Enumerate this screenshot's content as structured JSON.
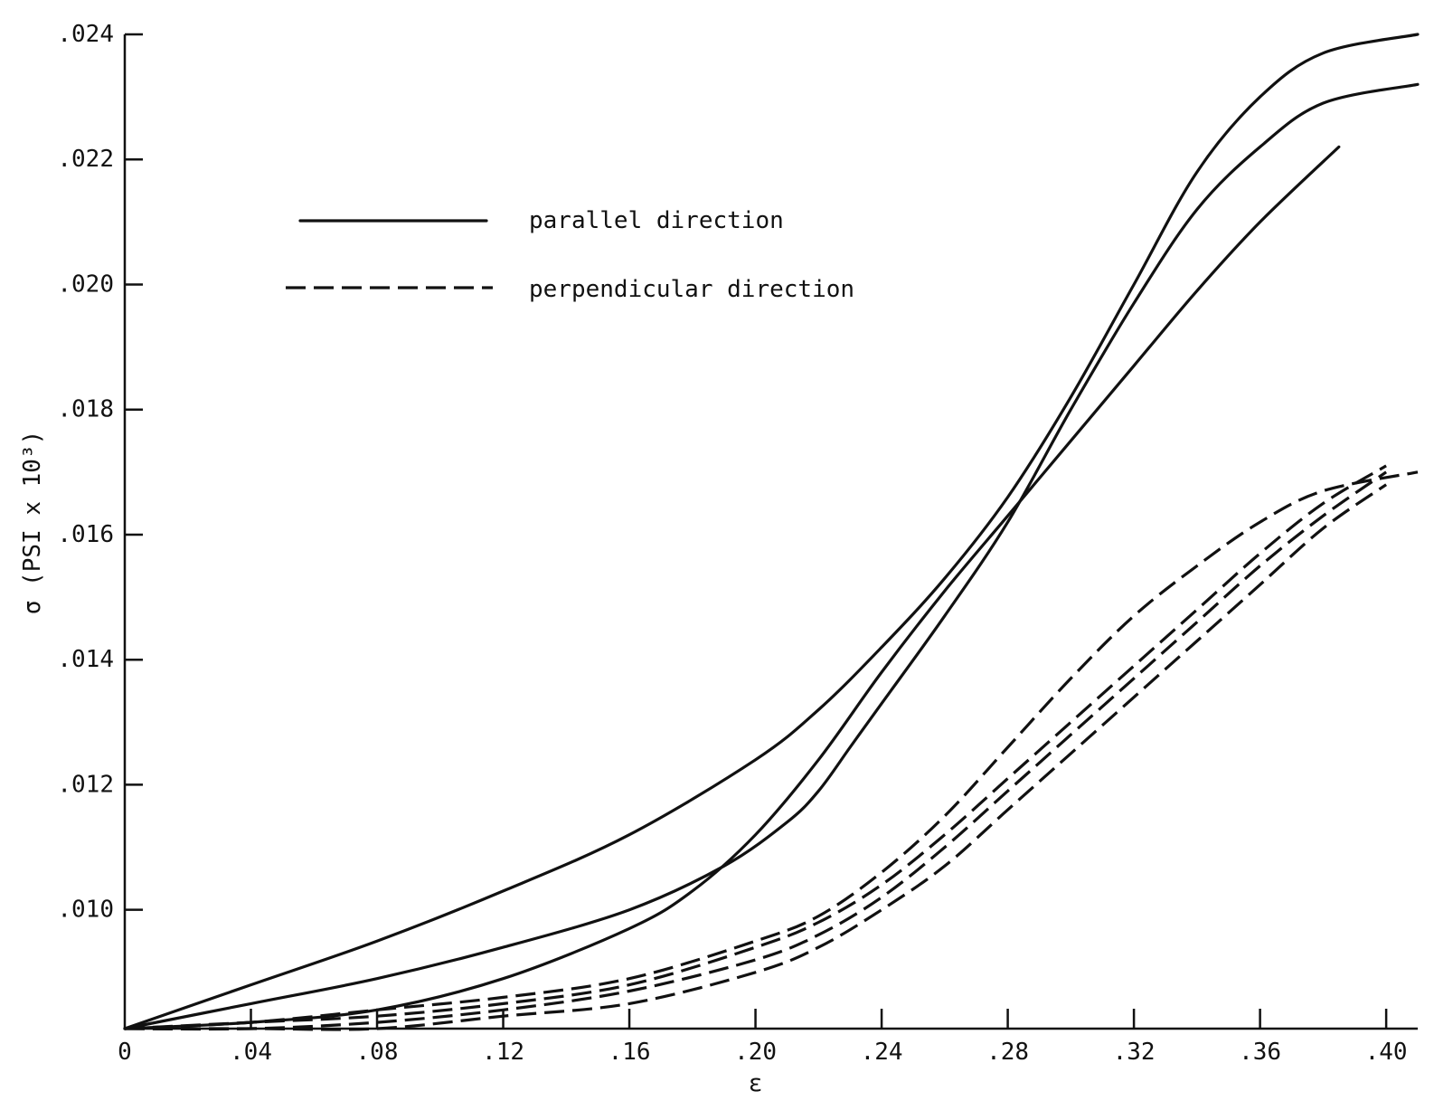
{
  "chart_data": {
    "type": "line",
    "xlabel": "ε",
    "ylabel": "σ (PSI x 10³)",
    "xlim": [
      0,
      0.41
    ],
    "ylim": [
      0.0081,
      0.024
    ],
    "x_ticks": [
      "0",
      ".04",
      ".08",
      ".12",
      ".16",
      ".20",
      ".24",
      ".28",
      ".32",
      ".36",
      ".40"
    ],
    "y_ticks": [
      ".010",
      ".012",
      ".014",
      ".016",
      ".018",
      ".020",
      ".022",
      ".024"
    ],
    "x_tick_values": [
      0,
      0.04,
      0.08,
      0.12,
      0.16,
      0.2,
      0.24,
      0.28,
      0.32,
      0.36,
      0.4
    ],
    "y_tick_values": [
      0.01,
      0.012,
      0.014,
      0.016,
      0.018,
      0.02,
      0.022,
      0.024
    ],
    "grid": false,
    "legend": {
      "placement": "top-left",
      "entries": [
        {
          "label": "parallel direction",
          "style": "solid"
        },
        {
          "label": "perpendicular direction",
          "style": "dashed"
        }
      ]
    },
    "series": [
      {
        "style": "solid",
        "points": [
          [
            0,
            0.0081
          ],
          [
            0.04,
            0.0088
          ],
          [
            0.08,
            0.0095
          ],
          [
            0.12,
            0.0103
          ],
          [
            0.16,
            0.0112
          ],
          [
            0.2,
            0.0124
          ],
          [
            0.22,
            0.0132
          ],
          [
            0.24,
            0.0142
          ],
          [
            0.26,
            0.0153
          ],
          [
            0.28,
            0.0166
          ],
          [
            0.3,
            0.0182
          ],
          [
            0.32,
            0.02
          ],
          [
            0.34,
            0.0218
          ],
          [
            0.36,
            0.023
          ],
          [
            0.38,
            0.0237
          ],
          [
            0.41,
            0.024
          ]
        ]
      },
      {
        "style": "solid",
        "points": [
          [
            0,
            0.0081
          ],
          [
            0.04,
            0.0085
          ],
          [
            0.08,
            0.0089
          ],
          [
            0.12,
            0.0094
          ],
          [
            0.16,
            0.01
          ],
          [
            0.19,
            0.0107
          ],
          [
            0.21,
            0.0114
          ],
          [
            0.22,
            0.0119
          ],
          [
            0.23,
            0.0126
          ],
          [
            0.24,
            0.0133
          ],
          [
            0.26,
            0.0147
          ],
          [
            0.28,
            0.0162
          ],
          [
            0.3,
            0.018
          ],
          [
            0.32,
            0.0197
          ],
          [
            0.34,
            0.0212
          ],
          [
            0.36,
            0.0222
          ],
          [
            0.38,
            0.0229
          ],
          [
            0.41,
            0.0232
          ]
        ]
      },
      {
        "style": "solid",
        "points": [
          [
            0,
            0.0081
          ],
          [
            0.04,
            0.0082
          ],
          [
            0.08,
            0.0084
          ],
          [
            0.12,
            0.0089
          ],
          [
            0.16,
            0.0097
          ],
          [
            0.18,
            0.0103
          ],
          [
            0.2,
            0.0112
          ],
          [
            0.22,
            0.0124
          ],
          [
            0.24,
            0.0138
          ],
          [
            0.26,
            0.0151
          ],
          [
            0.28,
            0.0163
          ],
          [
            0.3,
            0.0175
          ],
          [
            0.32,
            0.0187
          ],
          [
            0.34,
            0.0199
          ],
          [
            0.36,
            0.021
          ],
          [
            0.385,
            0.0222
          ]
        ]
      },
      {
        "style": "dashed",
        "points": [
          [
            0,
            0.0081
          ],
          [
            0.04,
            0.0082
          ],
          [
            0.08,
            0.0084
          ],
          [
            0.12,
            0.0086
          ],
          [
            0.16,
            0.0089
          ],
          [
            0.2,
            0.0095
          ],
          [
            0.22,
            0.0099
          ],
          [
            0.24,
            0.0106
          ],
          [
            0.26,
            0.0115
          ],
          [
            0.28,
            0.0126
          ],
          [
            0.3,
            0.0137
          ],
          [
            0.32,
            0.0147
          ],
          [
            0.34,
            0.0155
          ],
          [
            0.36,
            0.0162
          ],
          [
            0.38,
            0.0167
          ],
          [
            0.41,
            0.017
          ]
        ]
      },
      {
        "style": "dashed",
        "points": [
          [
            0,
            0.0081
          ],
          [
            0.04,
            0.0082
          ],
          [
            0.08,
            0.0083
          ],
          [
            0.12,
            0.0085
          ],
          [
            0.16,
            0.0088
          ],
          [
            0.2,
            0.0094
          ],
          [
            0.22,
            0.0098
          ],
          [
            0.24,
            0.0104
          ],
          [
            0.26,
            0.0112
          ],
          [
            0.28,
            0.0121
          ],
          [
            0.3,
            0.013
          ],
          [
            0.32,
            0.0139
          ],
          [
            0.34,
            0.0148
          ],
          [
            0.36,
            0.0157
          ],
          [
            0.38,
            0.0165
          ],
          [
            0.4,
            0.0171
          ]
        ]
      },
      {
        "style": "dashed",
        "points": [
          [
            0,
            0.0081
          ],
          [
            0.04,
            0.0081
          ],
          [
            0.08,
            0.0082
          ],
          [
            0.12,
            0.0084
          ],
          [
            0.16,
            0.0087
          ],
          [
            0.2,
            0.0092
          ],
          [
            0.22,
            0.0096
          ],
          [
            0.24,
            0.0102
          ],
          [
            0.26,
            0.011
          ],
          [
            0.28,
            0.0119
          ],
          [
            0.3,
            0.0128
          ],
          [
            0.32,
            0.0137
          ],
          [
            0.34,
            0.0146
          ],
          [
            0.36,
            0.0155
          ],
          [
            0.38,
            0.0163
          ],
          [
            0.4,
            0.017
          ]
        ]
      },
      {
        "style": "dashed",
        "points": [
          [
            0,
            0.0081
          ],
          [
            0.04,
            0.0081
          ],
          [
            0.08,
            0.0081
          ],
          [
            0.12,
            0.0083
          ],
          [
            0.16,
            0.0085
          ],
          [
            0.2,
            0.009
          ],
          [
            0.22,
            0.0094
          ],
          [
            0.24,
            0.01
          ],
          [
            0.26,
            0.0107
          ],
          [
            0.28,
            0.0116
          ],
          [
            0.3,
            0.0125
          ],
          [
            0.32,
            0.0134
          ],
          [
            0.34,
            0.0143
          ],
          [
            0.36,
            0.0152
          ],
          [
            0.38,
            0.0161
          ],
          [
            0.4,
            0.0168
          ]
        ]
      }
    ]
  }
}
